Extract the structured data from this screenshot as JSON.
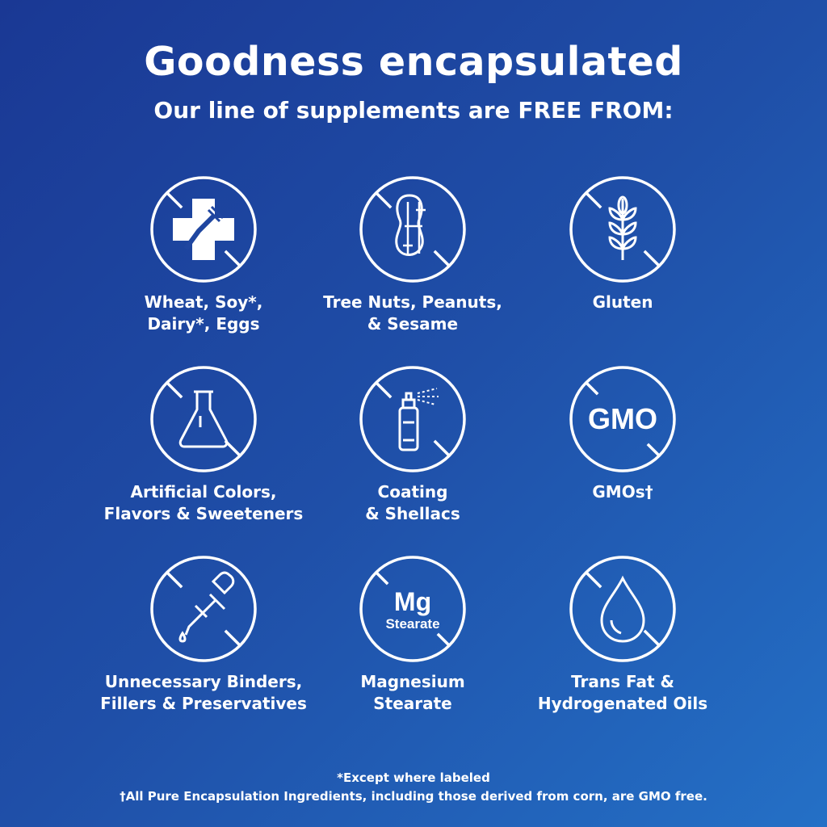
{
  "title": "Goodness encapsulated",
  "subtitle": "Our line of supplements are FREE FROM:",
  "items": [
    {
      "label": "Wheat, Soy*,\nDairy*, Eggs",
      "icon": "allergen-cross-fork-icon"
    },
    {
      "label": "Tree Nuts, Peanuts,\n& Sesame",
      "icon": "peanut-icon"
    },
    {
      "label": "Gluten",
      "icon": "wheat-icon"
    },
    {
      "label": "Artificial Colors,\nFlavors & Sweeteners",
      "icon": "flask-icon"
    },
    {
      "label": "Coating\n& Shellacs",
      "icon": "spray-can-icon"
    },
    {
      "label": "GMOs†",
      "icon": "gmo-text-icon",
      "icon_text": "GMO"
    },
    {
      "label": "Unnecessary Binders,\nFillers & Preservatives",
      "icon": "dropper-icon"
    },
    {
      "label": "Magnesium\nStearate",
      "icon": "mg-stearate-icon",
      "icon_text": "Mg",
      "icon_subtext": "Stearate"
    },
    {
      "label": "Trans Fat &\nHydrogenated Oils",
      "icon": "oil-drop-icon"
    }
  ],
  "footnotes": [
    "*Except where labeled",
    "†All Pure Encapsulation Ingredients, including those derived from corn, are GMO free."
  ]
}
